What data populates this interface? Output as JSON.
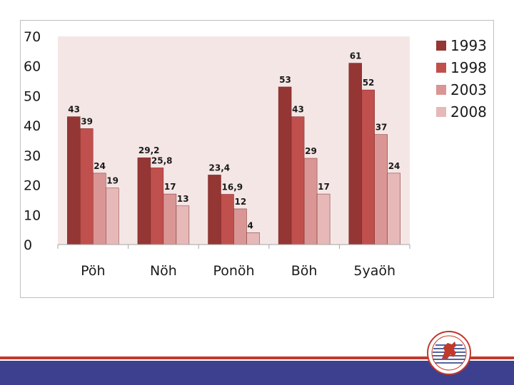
{
  "colors": {
    "plot_background": "#f5e6e6",
    "series": [
      "#943634",
      "#c0504d",
      "#d99694",
      "#e6b9b8"
    ],
    "footer_band": "#3d3f8f",
    "footer_line": "#c0392b"
  },
  "chart_data": {
    "type": "bar",
    "categories": [
      "Pöh",
      "Nöh",
      "Ponöh",
      "Böh",
      "5yaöh"
    ],
    "series": [
      {
        "name": "1993",
        "values": [
          43,
          29.2,
          23.4,
          53,
          61
        ],
        "labels": [
          "43",
          "29,2",
          "23,4",
          "53",
          "61"
        ]
      },
      {
        "name": "1998",
        "values": [
          39,
          25.8,
          16.9,
          43,
          52
        ],
        "labels": [
          "39",
          "25,8",
          "16,9",
          "43",
          "52"
        ]
      },
      {
        "name": "2003",
        "values": [
          24,
          17,
          12,
          29,
          37
        ],
        "labels": [
          "24",
          "17",
          "12",
          "29",
          "37"
        ]
      },
      {
        "name": "2008",
        "values": [
          19,
          13,
          4,
          17,
          24
        ],
        "labels": [
          "19",
          "13",
          "4",
          "17",
          "24"
        ]
      }
    ],
    "y_ticks": [
      "0",
      "10",
      "20",
      "30",
      "40",
      "50",
      "60",
      "70"
    ],
    "ylim": [
      0,
      70
    ],
    "grid": false,
    "legend_position": "right",
    "title": "",
    "xlabel": "",
    "ylabel": ""
  },
  "logo": {
    "icon": "university-seal-icon"
  }
}
